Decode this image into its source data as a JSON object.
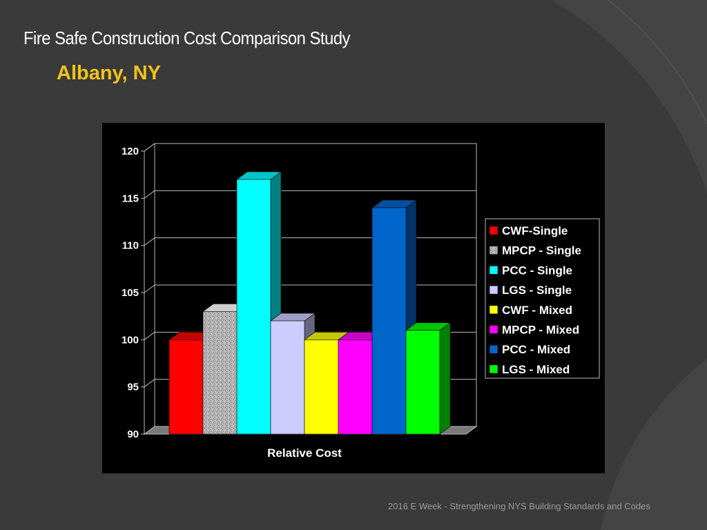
{
  "slide": {
    "title": "Fire Safe Construction Cost Comparison Study",
    "subtitle": "Albany, NY",
    "footer": "2016 E Week - Strengthening NYS Building Standards and Codes"
  },
  "colors": {
    "background": "#3a3a3a",
    "title": "#ffffff",
    "subtitle": "#f2c31a",
    "footer": "#9a9a9a",
    "chart_background": "#000000"
  },
  "chart_data": {
    "type": "bar",
    "style": "3d-clustered-column",
    "title": "",
    "xlabel": "Relative Cost",
    "ylabel": "",
    "ylim": [
      90,
      120
    ],
    "yticks": [
      90,
      95,
      100,
      105,
      110,
      115,
      120
    ],
    "grid": true,
    "legend_position": "right",
    "categories": [
      "Relative Cost"
    ],
    "series": [
      {
        "name": "CWF-Single",
        "values": [
          100
        ],
        "color": "#ff0000"
      },
      {
        "name": "MPCP - Single",
        "values": [
          103
        ],
        "color": "#a8a8a8",
        "pattern": "speckled"
      },
      {
        "name": "PCC - Single",
        "values": [
          117
        ],
        "color": "#00ffff"
      },
      {
        "name": "LGS - Single",
        "values": [
          102
        ],
        "color": "#ccccff"
      },
      {
        "name": "CWF - Mixed",
        "values": [
          100
        ],
        "color": "#ffff00"
      },
      {
        "name": "MPCP - Mixed",
        "values": [
          100
        ],
        "color": "#ff00ff"
      },
      {
        "name": "PCC - Mixed",
        "values": [
          114
        ],
        "color": "#0066cc"
      },
      {
        "name": "LGS - Mixed",
        "values": [
          101
        ],
        "color": "#00ff00"
      }
    ]
  }
}
